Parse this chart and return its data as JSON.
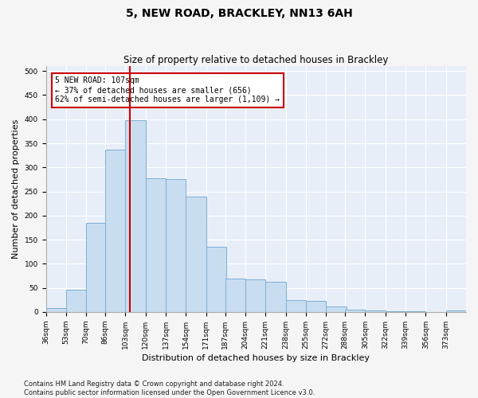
{
  "title": "5, NEW ROAD, BRACKLEY, NN13 6AH",
  "subtitle": "Size of property relative to detached houses in Brackley",
  "xlabel": "Distribution of detached houses by size in Brackley",
  "ylabel": "Number of detached properties",
  "bar_color": "#c9ddf0",
  "bar_edge_color": "#7bafd4",
  "background_color": "#e8eef8",
  "grid_color": "#ffffff",
  "fig_background": "#f5f5f5",
  "vline_x": 107,
  "vline_color": "#cc0000",
  "annotation_text": "5 NEW ROAD: 107sqm\n← 37% of detached houses are smaller (656)\n62% of semi-detached houses are larger (1,109) →",
  "annotation_box_color": "#ffffff",
  "annotation_box_edge": "#cc0000",
  "bin_lefts": [
    36,
    53,
    70,
    86,
    103,
    120,
    137,
    154,
    171,
    187,
    204,
    221,
    238,
    255,
    272,
    288,
    305,
    322,
    339,
    356,
    373
  ],
  "bin_width": 17,
  "values": [
    8,
    46,
    185,
    337,
    398,
    277,
    275,
    240,
    135,
    70,
    68,
    62,
    25,
    23,
    11,
    5,
    3,
    2,
    1,
    0,
    3
  ],
  "ylim": [
    0,
    510
  ],
  "xlim": [
    36,
    390
  ],
  "yticks": [
    0,
    50,
    100,
    150,
    200,
    250,
    300,
    350,
    400,
    450,
    500
  ],
  "xtick_labels": [
    "36sqm",
    "53sqm",
    "70sqm",
    "86sqm",
    "103sqm",
    "120sqm",
    "137sqm",
    "154sqm",
    "171sqm",
    "187sqm",
    "204sqm",
    "221sqm",
    "238sqm",
    "255sqm",
    "272sqm",
    "288sqm",
    "305sqm",
    "322sqm",
    "339sqm",
    "356sqm",
    "373sqm"
  ],
  "footer": "Contains HM Land Registry data © Crown copyright and database right 2024.\nContains public sector information licensed under the Open Government Licence v3.0.",
  "title_fontsize": 10,
  "subtitle_fontsize": 8.5,
  "tick_label_fontsize": 6.5,
  "ylabel_fontsize": 8,
  "xlabel_fontsize": 8,
  "footer_fontsize": 6
}
